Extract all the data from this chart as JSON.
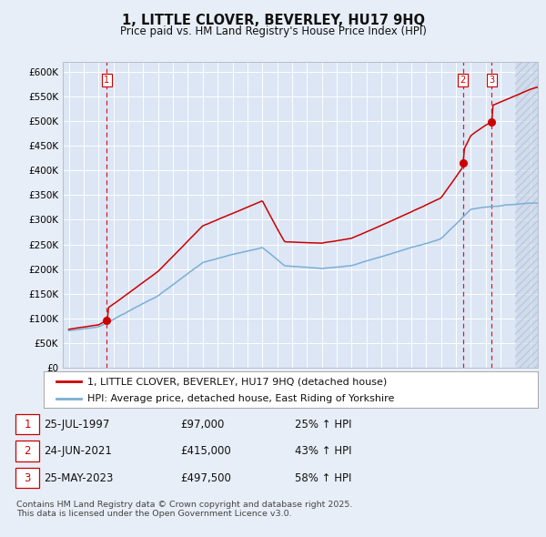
{
  "title": "1, LITTLE CLOVER, BEVERLEY, HU17 9HQ",
  "subtitle": "Price paid vs. HM Land Registry's House Price Index (HPI)",
  "title_fontsize": 10.5,
  "subtitle_fontsize": 8.5,
  "bg_color": "#e8eef7",
  "plot_bg_color": "#dce6f5",
  "grid_color": "#ffffff",
  "red_color": "#cc0000",
  "blue_color": "#7aafd4",
  "ylim": [
    0,
    620000
  ],
  "yticks": [
    0,
    50000,
    100000,
    150000,
    200000,
    250000,
    300000,
    350000,
    400000,
    450000,
    500000,
    550000,
    600000
  ],
  "xlim_left": 1994.6,
  "xlim_right": 2026.5,
  "legend_label_red": "1, LITTLE CLOVER, BEVERLEY, HU17 9HQ (detached house)",
  "legend_label_blue": "HPI: Average price, detached house, East Riding of Yorkshire",
  "sale1_date": "25-JUL-1997",
  "sale1_price": 97000,
  "sale1_hpi": "25% ↑ HPI",
  "sale1_label": "1",
  "sale1_year": 1997.56,
  "sale2_date": "24-JUN-2021",
  "sale2_price": 415000,
  "sale2_hpi": "43% ↑ HPI",
  "sale2_label": "2",
  "sale2_year": 2021.46,
  "sale3_date": "25-MAY-2023",
  "sale3_price": 497500,
  "sale3_hpi": "58% ↑ HPI",
  "sale3_label": "3",
  "sale3_year": 2023.4,
  "hatch_start": 2025.0,
  "footer": "Contains HM Land Registry data © Crown copyright and database right 2025.\nThis data is licensed under the Open Government Licence v3.0."
}
